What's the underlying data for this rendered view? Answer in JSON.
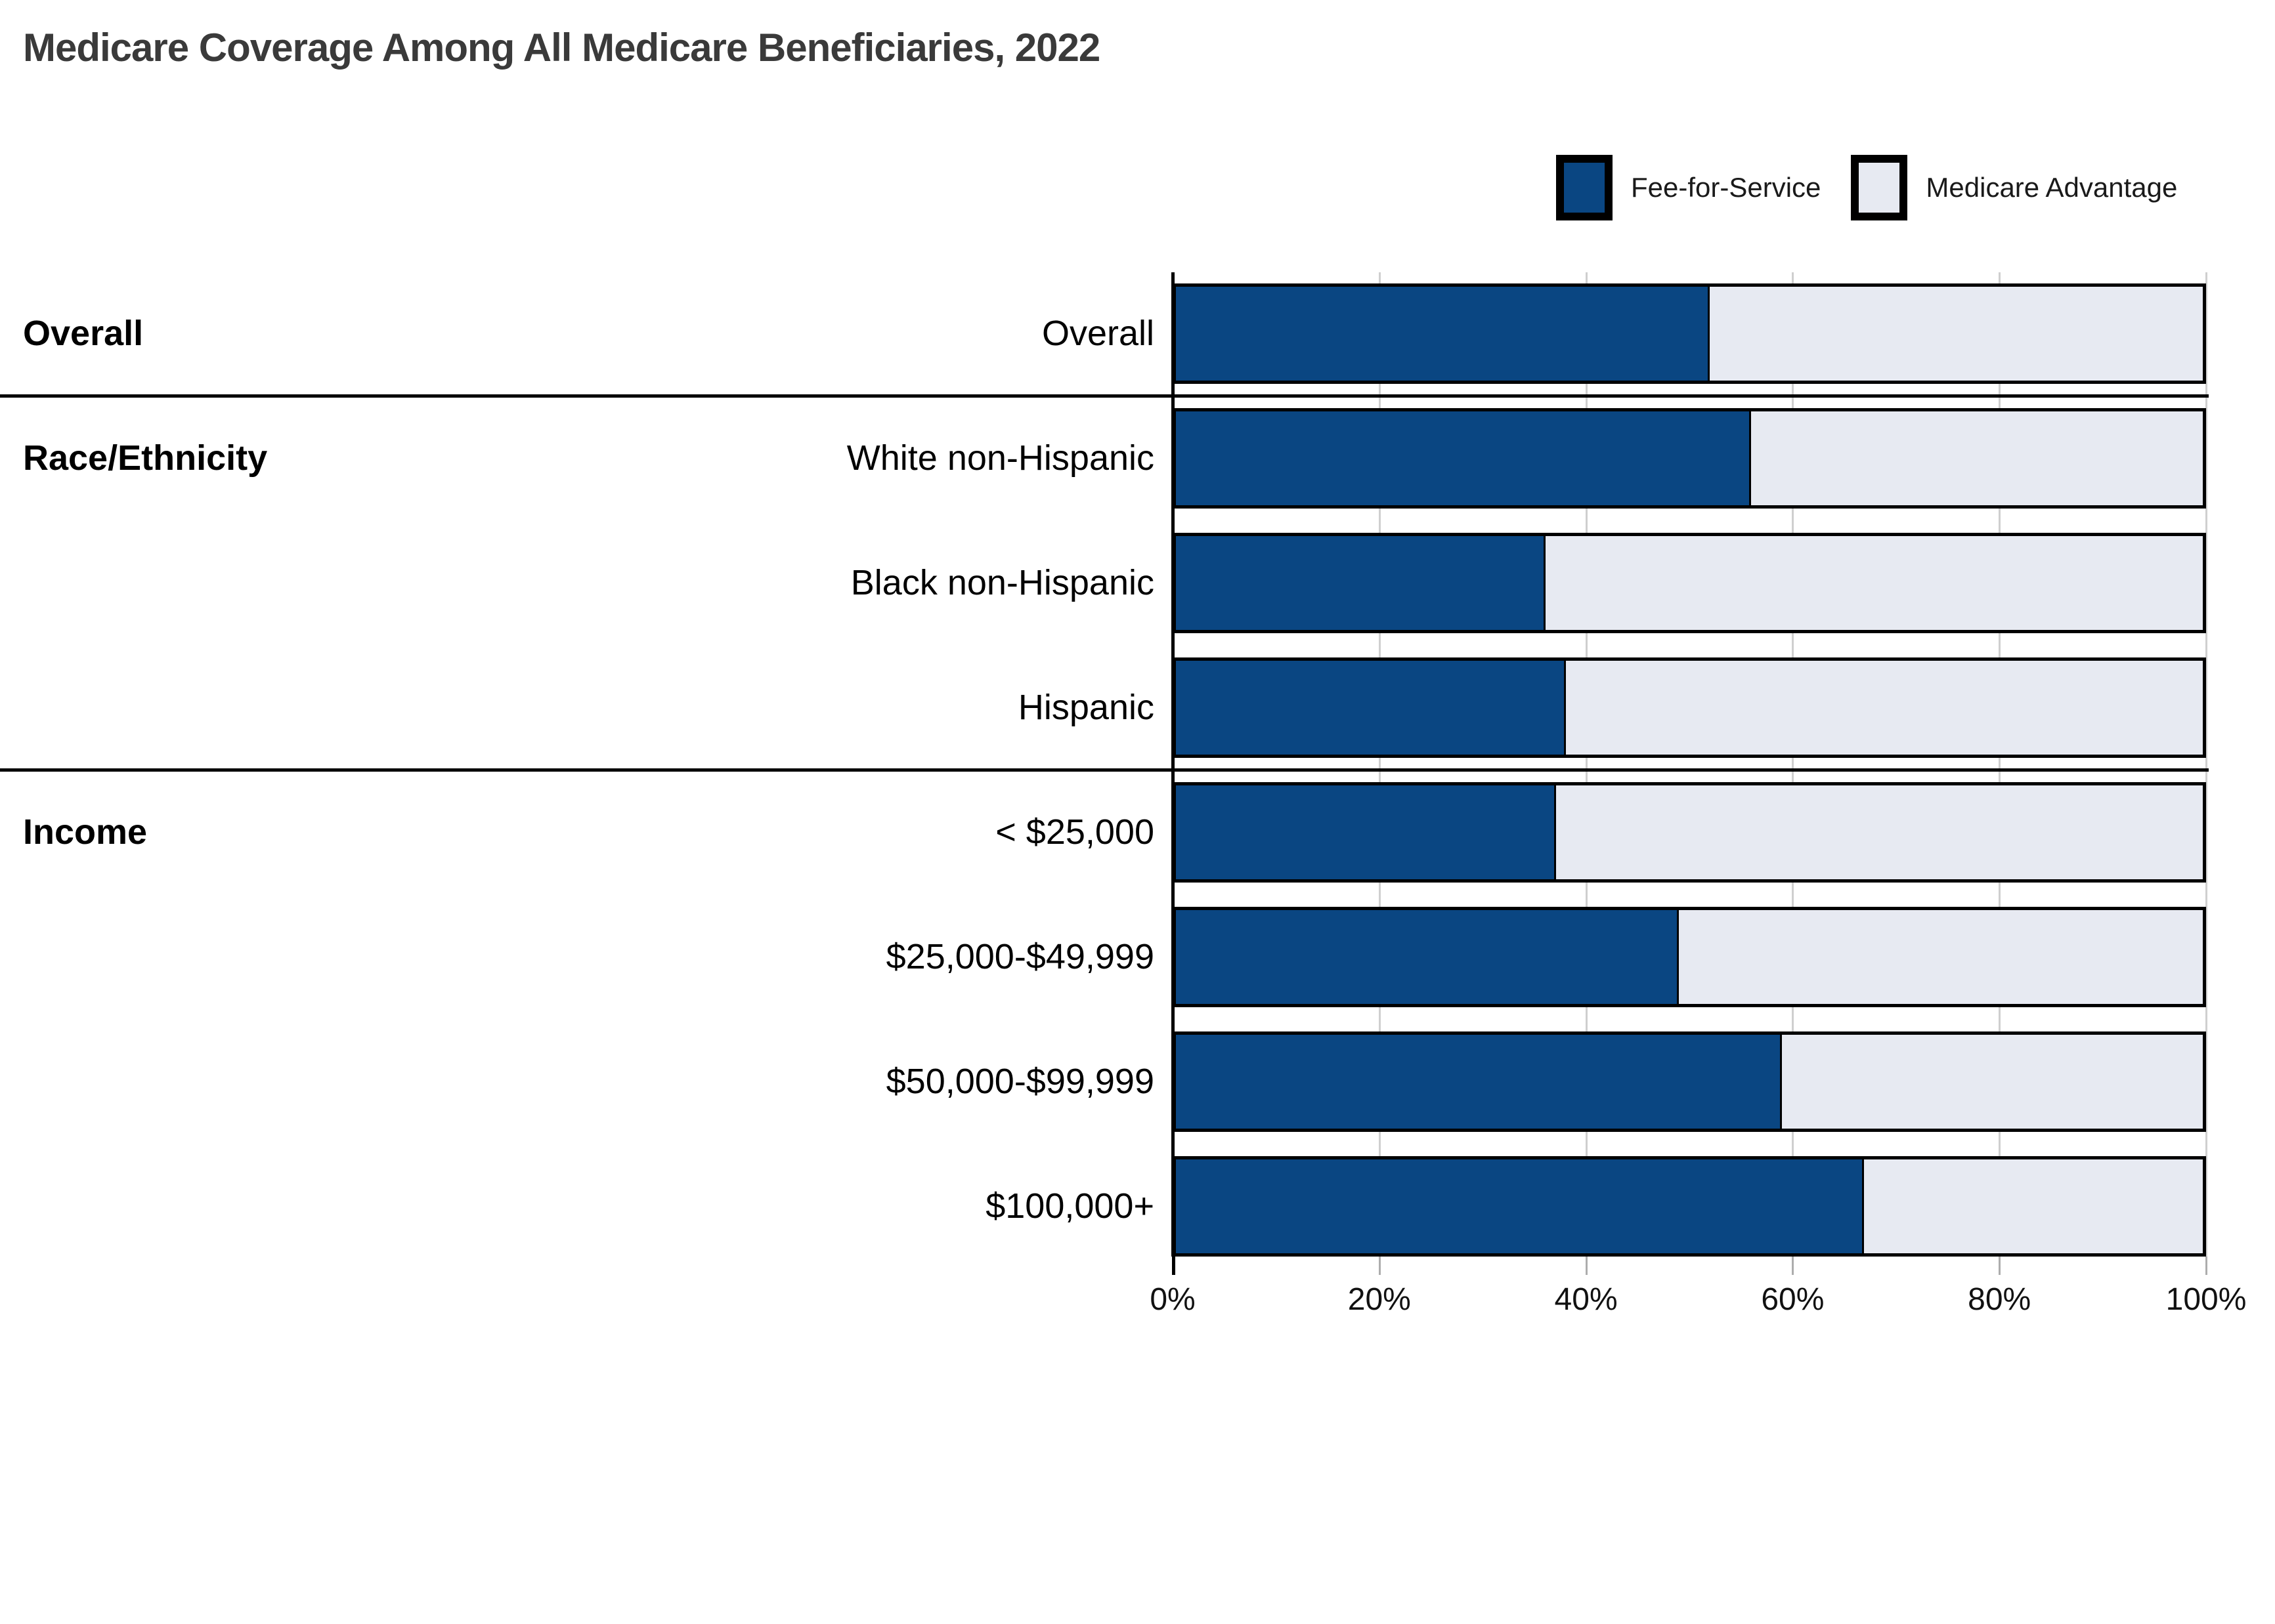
{
  "title": "Medicare Coverage Among All Medicare Beneficiaries, 2022",
  "colors": {
    "fee_for_service": "#0a4682",
    "medicare_advantage": "#e7eaf2",
    "bar_border": "#000000",
    "gridline": "#cfcfcf",
    "title_text": "#3a3a3a"
  },
  "legend": {
    "items": [
      {
        "label": "Fee-for-Service",
        "color_key": "fee_for_service"
      },
      {
        "label": "Medicare Advantage",
        "color_key": "medicare_advantage"
      }
    ]
  },
  "chart_data": {
    "type": "bar",
    "orientation": "horizontal",
    "stacked": true,
    "x_axis": {
      "min": 0,
      "max": 100,
      "tick_labels": [
        "0%",
        "20%",
        "40%",
        "60%",
        "80%",
        "100%"
      ],
      "tick_values": [
        0,
        20,
        40,
        60,
        80,
        100
      ]
    },
    "series_names": [
      "Fee-for-Service",
      "Medicare Advantage"
    ],
    "groups": [
      {
        "label": "Overall",
        "rows": [
          {
            "label": "Overall",
            "fee_for_service": 52,
            "medicare_advantage": 48
          }
        ]
      },
      {
        "label": "Race/Ethnicity",
        "rows": [
          {
            "label": "White non-Hispanic",
            "fee_for_service": 56,
            "medicare_advantage": 44
          },
          {
            "label": "Black non-Hispanic",
            "fee_for_service": 36,
            "medicare_advantage": 64
          },
          {
            "label": "Hispanic",
            "fee_for_service": 38,
            "medicare_advantage": 62
          }
        ]
      },
      {
        "label": "Income",
        "rows": [
          {
            "label": "< $25,000",
            "fee_for_service": 37,
            "medicare_advantage": 63
          },
          {
            "label": "$25,000-$49,999",
            "fee_for_service": 49,
            "medicare_advantage": 51
          },
          {
            "label": "$50,000-$99,999",
            "fee_for_service": 59,
            "medicare_advantage": 41
          },
          {
            "label": "$100,000+",
            "fee_for_service": 67,
            "medicare_advantage": 33
          }
        ]
      }
    ]
  }
}
